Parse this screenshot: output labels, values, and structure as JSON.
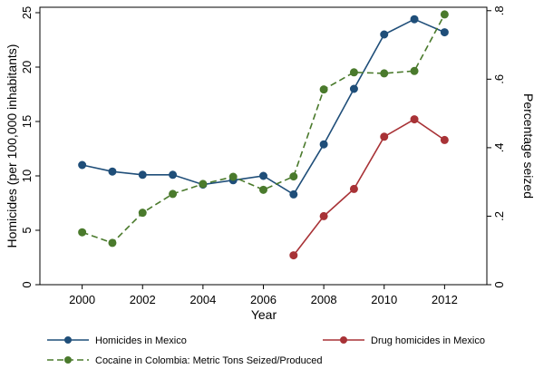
{
  "chart_data": {
    "type": "line",
    "xlabel": "Year",
    "ylabel_left": "Homicides (per 100,000 inhabitants)",
    "ylabel_right": "Percentage seized",
    "x_ticks": [
      "2000",
      "2002",
      "2004",
      "2006",
      "2008",
      "2010",
      "2012"
    ],
    "y_left_ticks": [
      "0",
      "5",
      "10",
      "15",
      "20",
      "25"
    ],
    "y_right_ticks": [
      "0",
      ".2",
      ".4",
      ".6",
      ".8"
    ],
    "xlim": [
      1998.6,
      2013.4
    ],
    "ylim_left": [
      0,
      25.5
    ],
    "ylim_right": [
      0,
      0.81
    ],
    "grid": false,
    "legend_position": "bottom",
    "series": [
      {
        "name": "Homicides in Mexico",
        "axis": "left",
        "color": "#1f4e79",
        "dash": "solid",
        "x": [
          2000,
          2001,
          2002,
          2003,
          2004,
          2005,
          2006,
          2007,
          2008,
          2009,
          2010,
          2011,
          2012
        ],
        "values": [
          11.0,
          10.4,
          10.1,
          10.1,
          9.2,
          9.6,
          10.0,
          8.3,
          12.9,
          18.0,
          23.0,
          24.4,
          23.2
        ]
      },
      {
        "name": "Drug homicides in Mexico",
        "axis": "left",
        "color": "#a83236",
        "dash": "solid",
        "x": [
          2007,
          2008,
          2009,
          2010,
          2011,
          2012
        ],
        "values": [
          2.7,
          6.3,
          8.8,
          13.6,
          15.2,
          13.3
        ]
      },
      {
        "name": "Cocaine in Colombia: Metric Tons Seized/Produced",
        "axis": "right",
        "color": "#4a7a2c",
        "dash": "dashed",
        "x": [
          2000,
          2001,
          2002,
          2003,
          2004,
          2005,
          2006,
          2007,
          2008,
          2009,
          2010,
          2011,
          2012
        ],
        "values": [
          0.153,
          0.122,
          0.21,
          0.265,
          0.294,
          0.315,
          0.277,
          0.316,
          0.57,
          0.62,
          0.617,
          0.624,
          0.789
        ]
      }
    ]
  }
}
